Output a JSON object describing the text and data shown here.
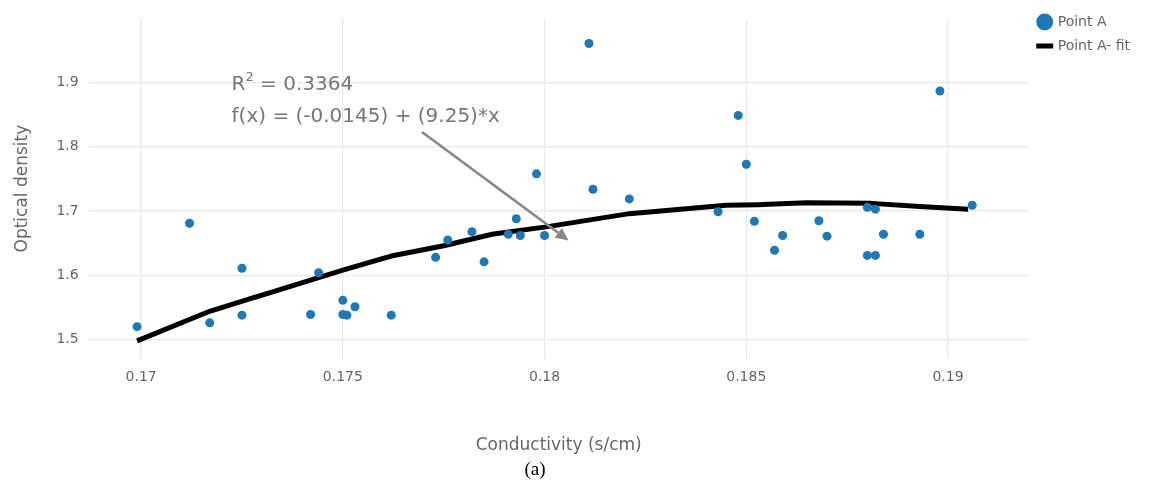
{
  "chart_data": {
    "type": "scatter",
    "xlabel": "Conductivity (s/cm)",
    "ylabel": "Optical density",
    "xlim": [
      0.1687,
      0.192
    ],
    "ylim": [
      1.47,
      2.0
    ],
    "xticks": [
      0.17,
      0.175,
      0.18,
      0.185,
      0.19
    ],
    "yticks": [
      1.5,
      1.6,
      1.7,
      1.8,
      1.9
    ],
    "grid": true,
    "legend": "top right",
    "series": [
      {
        "name": "Point A",
        "color": "#1f77b4",
        "marker": "circle",
        "x": [
          0.1699,
          0.1712,
          0.1717,
          0.1725,
          0.1725,
          0.1742,
          0.1744,
          0.175,
          0.175,
          0.1751,
          0.1753,
          0.1762,
          0.1773,
          0.1776,
          0.1782,
          0.1785,
          0.1791,
          0.1793,
          0.1794,
          0.1798,
          0.18,
          0.1811,
          0.1812,
          0.1821,
          0.1843,
          0.1848,
          0.185,
          0.1852,
          0.1857,
          0.1859,
          0.1868,
          0.187,
          0.188,
          0.1882,
          0.188,
          0.1882,
          0.1884,
          0.1893,
          0.1898,
          0.1906
        ],
        "values": [
          1.52,
          1.681,
          1.526,
          1.611,
          1.538,
          1.539,
          1.604,
          1.561,
          1.539,
          1.538,
          1.551,
          1.538,
          1.628,
          1.655,
          1.668,
          1.621,
          1.664,
          1.688,
          1.662,
          1.758,
          1.662,
          1.961,
          1.734,
          1.719,
          1.699,
          1.849,
          1.773,
          1.684,
          1.639,
          1.662,
          1.685,
          1.661,
          1.706,
          1.703,
          1.631,
          1.631,
          1.664,
          1.664,
          1.887,
          1.709
        ]
      },
      {
        "name": "Point A- fit",
        "type": "line",
        "color": "#000000",
        "marker": "none",
        "line_style": "solid",
        "x": [
          0.1699,
          0.1717,
          0.1735,
          0.175,
          0.1762,
          0.1775,
          0.1787,
          0.18,
          0.1821,
          0.1845,
          0.1853,
          0.1865,
          0.1881,
          0.1893,
          0.1905
        ],
        "values": [
          1.498,
          1.544,
          1.579,
          1.608,
          1.63,
          1.646,
          1.664,
          1.675,
          1.696,
          1.709,
          1.71,
          1.713,
          1.712,
          1.707,
          1.703
        ]
      }
    ],
    "annotations": [
      "R$^{2}$ = 0.3364\nf(x) = (-0.0145) + (9.25)*x",
      "(a)"
    ]
  }
}
